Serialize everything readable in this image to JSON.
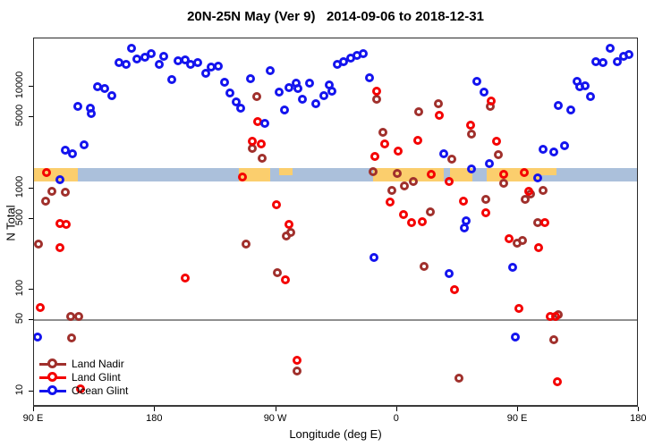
{
  "title": "20N-25N May (Ver 9)   2014-09-06 to 2018-12-31",
  "axes": {
    "x_label": "Longitude (deg E)",
    "y_label": "N Total",
    "x_ticks": [
      {
        "value": 90,
        "label": "90 E"
      },
      {
        "value": 180,
        "label": "180"
      },
      {
        "value": 270,
        "label": "90 W"
      },
      {
        "value": 360,
        "label": "0"
      },
      {
        "value": 450,
        "label": "90 E"
      },
      {
        "value": 540,
        "label": "180"
      }
    ],
    "y_ticks": [
      {
        "value": 10,
        "label": "10"
      },
      {
        "value": 50,
        "label": "50"
      },
      {
        "value": 100,
        "label": "100"
      },
      {
        "value": 500,
        "label": "500"
      },
      {
        "value": 1000,
        "label": "1000"
      },
      {
        "value": 5000,
        "label": "5000"
      },
      {
        "value": 10000,
        "label": "10000"
      }
    ]
  },
  "reference_line": {
    "value": 50,
    "color": "#8f8f8f"
  },
  "map_band": {
    "ocean_color": "#ABC0DB",
    "land_color": "#FBCE6D",
    "extent": [
      90,
      540
    ],
    "land_segments": [
      {
        "from": 90,
        "to": 123.2,
        "thin": false
      },
      {
        "from": 243.3,
        "to": 266.5,
        "thin": false
      },
      {
        "from": 273.2,
        "to": 283.1,
        "thin": true
      },
      {
        "from": 342.9,
        "to": 395.3,
        "thin": false
      },
      {
        "from": 400.0,
        "to": 416.5,
        "thin": false
      },
      {
        "from": 427.1,
        "to": 467.0,
        "thin": false
      },
      {
        "from": 467.0,
        "to": 478.9,
        "thin": true
      }
    ]
  },
  "chart_data": {
    "type": "scatter",
    "title": "20N-25N May (Ver 9)   2014-09-06 to 2018-12-31",
    "xlabel": "Longitude (deg E)",
    "ylabel": "N Total",
    "x_axis_note": "axis spans 450 deg: 90E east through 180, 90W, 0, 90E to 180",
    "xlim": [
      90,
      540
    ],
    "ylim_log": [
      7,
      30000
    ],
    "legend_position": "bottom-left",
    "grid": false,
    "series": [
      {
        "name": "Land Nadir",
        "color": "#A0302C",
        "marker": "open-circle",
        "points": [
          [
            103.9,
            916
          ],
          [
            113.9,
            898
          ],
          [
            99.3,
            736
          ],
          [
            94,
            277
          ],
          [
            117.9,
            53.5
          ],
          [
            123.9,
            53.5
          ],
          [
            118.5,
            33
          ],
          [
            256.6,
            7850
          ],
          [
            253.3,
            2430
          ],
          [
            260.6,
            1945
          ],
          [
            248.6,
            277
          ],
          [
            278.5,
            332
          ],
          [
            281.8,
            360
          ],
          [
            271.9,
            145
          ],
          [
            286.4,
            15.5
          ],
          [
            345.5,
            7450
          ],
          [
            391.3,
            6700
          ],
          [
            376.7,
            5550
          ],
          [
            350.2,
            3500
          ],
          [
            401.3,
            1905
          ],
          [
            342.9,
            1440
          ],
          [
            360.8,
            1380
          ],
          [
            356.8,
            935
          ],
          [
            366.1,
            1035
          ],
          [
            372.7,
            1155
          ],
          [
            385.3,
            575
          ],
          [
            380.7,
            167
          ],
          [
            429.8,
            6300
          ],
          [
            415.9,
            3370
          ],
          [
            435.8,
            2110
          ],
          [
            439.8,
            1100
          ],
          [
            469,
            935
          ],
          [
            455.7,
            765
          ],
          [
            459.7,
            870
          ],
          [
            426.6,
            765
          ],
          [
            449.8,
            283
          ],
          [
            453.7,
            300
          ],
          [
            465,
            452
          ],
          [
            477,
            31.8
          ],
          [
            406.6,
            13.2
          ],
          [
            480.3,
            56
          ]
        ]
      },
      {
        "name": "Land Glint",
        "color": "#F40000",
        "marker": "open-circle",
        "points": [
          [
            100,
            1410
          ],
          [
            109.9,
            444
          ],
          [
            114.6,
            435
          ],
          [
            109.9,
            255
          ],
          [
            95.3,
            65
          ],
          [
            125.2,
            10.4
          ],
          [
            202.8,
            128
          ],
          [
            257.3,
            4470
          ],
          [
            253.3,
            2860
          ],
          [
            259.9,
            2690
          ],
          [
            246,
            1270
          ],
          [
            271.2,
            674
          ],
          [
            280.5,
            435
          ],
          [
            277.8,
            123
          ],
          [
            286.4,
            19.8
          ],
          [
            345.5,
            8900
          ],
          [
            392,
            5150
          ],
          [
            351.5,
            2690
          ],
          [
            361.4,
            2280
          ],
          [
            344.2,
            2030
          ],
          [
            376.1,
            2920
          ],
          [
            386,
            1360
          ],
          [
            399.3,
            1155
          ],
          [
            355.5,
            722
          ],
          [
            365.4,
            543
          ],
          [
            371.4,
            452
          ],
          [
            379.4,
            461
          ],
          [
            403.3,
            98
          ],
          [
            430.5,
            7130
          ],
          [
            415.2,
            4100
          ],
          [
            434.5,
            2860
          ],
          [
            439.8,
            1360
          ],
          [
            455.1,
            1410
          ],
          [
            409.9,
            736
          ],
          [
            458.4,
            917
          ],
          [
            426.6,
            563
          ],
          [
            470.3,
            452
          ],
          [
            443.8,
            313
          ],
          [
            465.7,
            256
          ],
          [
            451.1,
            64
          ],
          [
            474.3,
            53.5
          ],
          [
            478.3,
            53.5
          ],
          [
            479.6,
            12.2
          ]
        ]
      },
      {
        "name": "Ocean Glint",
        "color": "#1414EE",
        "marker": "open-circle",
        "points": [
          [
            93.3,
            33.6
          ],
          [
            109.9,
            1195
          ],
          [
            113.9,
            2330
          ],
          [
            119.2,
            2140
          ],
          [
            123.2,
            6300
          ],
          [
            127.8,
            2620
          ],
          [
            132.5,
            6050
          ],
          [
            133.1,
            5350
          ],
          [
            137.8,
            9850
          ],
          [
            143.1,
            9450
          ],
          [
            148.4,
            8000
          ],
          [
            153.7,
            17000
          ],
          [
            159,
            16300
          ],
          [
            163,
            23600
          ],
          [
            167,
            18500
          ],
          [
            173,
            19300
          ],
          [
            177.6,
            21000
          ],
          [
            183.6,
            16300
          ],
          [
            186.9,
            19600
          ],
          [
            192.9,
            11600
          ],
          [
            197.5,
            17700
          ],
          [
            202.8,
            18100
          ],
          [
            206.8,
            16300
          ],
          [
            212.1,
            17000
          ],
          [
            218.1,
            13300
          ],
          [
            222.1,
            15400
          ],
          [
            227.4,
            15700
          ],
          [
            232.7,
            10900
          ],
          [
            236.7,
            8550
          ],
          [
            241.3,
            6950
          ],
          [
            244.6,
            6050
          ],
          [
            251.9,
            11800
          ],
          [
            262.6,
            4300
          ],
          [
            266.5,
            14200
          ],
          [
            273.2,
            8700
          ],
          [
            277.2,
            5800
          ],
          [
            280.5,
            9650
          ],
          [
            285.8,
            10700
          ],
          [
            287.1,
            9450
          ],
          [
            290.4,
            7400
          ],
          [
            295.8,
            10700
          ],
          [
            300.4,
            6700
          ],
          [
            306.4,
            8000
          ],
          [
            310.4,
            10300
          ],
          [
            312.4,
            8900
          ],
          [
            316.3,
            16300
          ],
          [
            321,
            17350
          ],
          [
            326.3,
            18800
          ],
          [
            330.9,
            19900
          ],
          [
            335.6,
            20700
          ],
          [
            340.2,
            12100
          ],
          [
            343.5,
            206
          ],
          [
            395.3,
            2150
          ],
          [
            399.3,
            142
          ],
          [
            419.9,
            11100
          ],
          [
            425.2,
            8700
          ],
          [
            429.2,
            1720
          ],
          [
            415.9,
            1510
          ],
          [
            410.6,
            400
          ],
          [
            411.9,
            470
          ],
          [
            446.4,
            163
          ],
          [
            448.4,
            33.6
          ],
          [
            465,
            1245
          ],
          [
            469,
            2370
          ],
          [
            477,
            2240
          ],
          [
            480.3,
            6400
          ],
          [
            484.9,
            2580
          ],
          [
            489.6,
            5800
          ],
          [
            494.2,
            11100
          ],
          [
            496.2,
            9850
          ],
          [
            500.2,
            10050
          ],
          [
            504.8,
            7850
          ],
          [
            508.8,
            17500
          ],
          [
            514.1,
            17000
          ],
          [
            519.4,
            23600
          ],
          [
            524.7,
            17500
          ],
          [
            529.4,
            19600
          ],
          [
            533.4,
            20400
          ]
        ]
      }
    ]
  }
}
